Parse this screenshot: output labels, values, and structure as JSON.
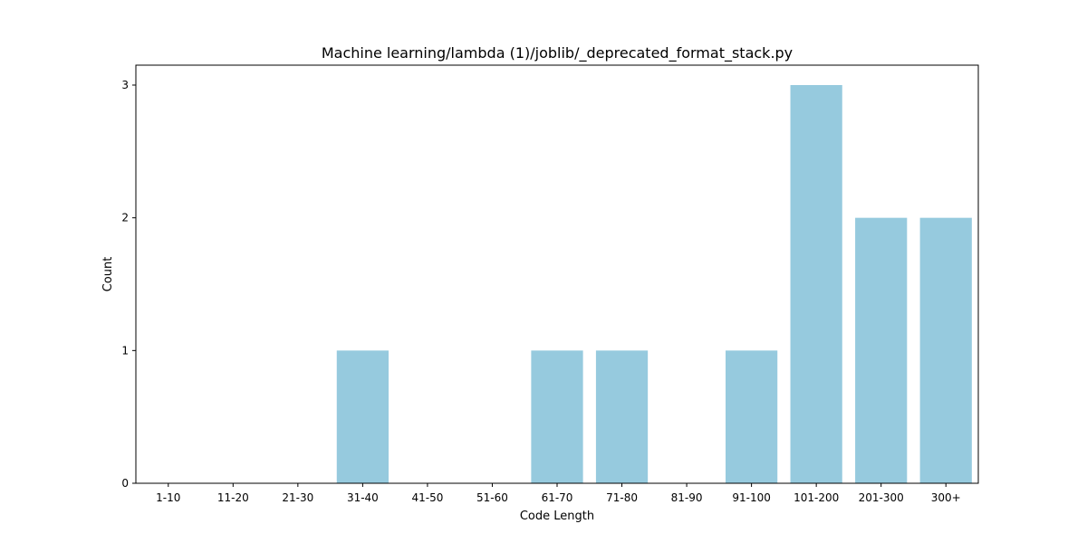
{
  "chart_data": {
    "type": "bar",
    "title": "Machine learning/lambda (1)/joblib/_deprecated_format_stack.py",
    "xlabel": "Code Length",
    "ylabel": "Count",
    "categories": [
      "1-10",
      "11-20",
      "21-30",
      "31-40",
      "41-50",
      "51-60",
      "61-70",
      "71-80",
      "81-90",
      "91-100",
      "101-200",
      "201-300",
      "300+"
    ],
    "values": [
      0,
      0,
      0,
      1,
      0,
      0,
      1,
      1,
      0,
      1,
      3,
      2,
      2
    ],
    "yticks": [
      "0",
      "1",
      "2",
      "3"
    ],
    "ylim": [
      0,
      3.15
    ],
    "bar_color": "#96cade",
    "grid": false,
    "legend": "none"
  }
}
